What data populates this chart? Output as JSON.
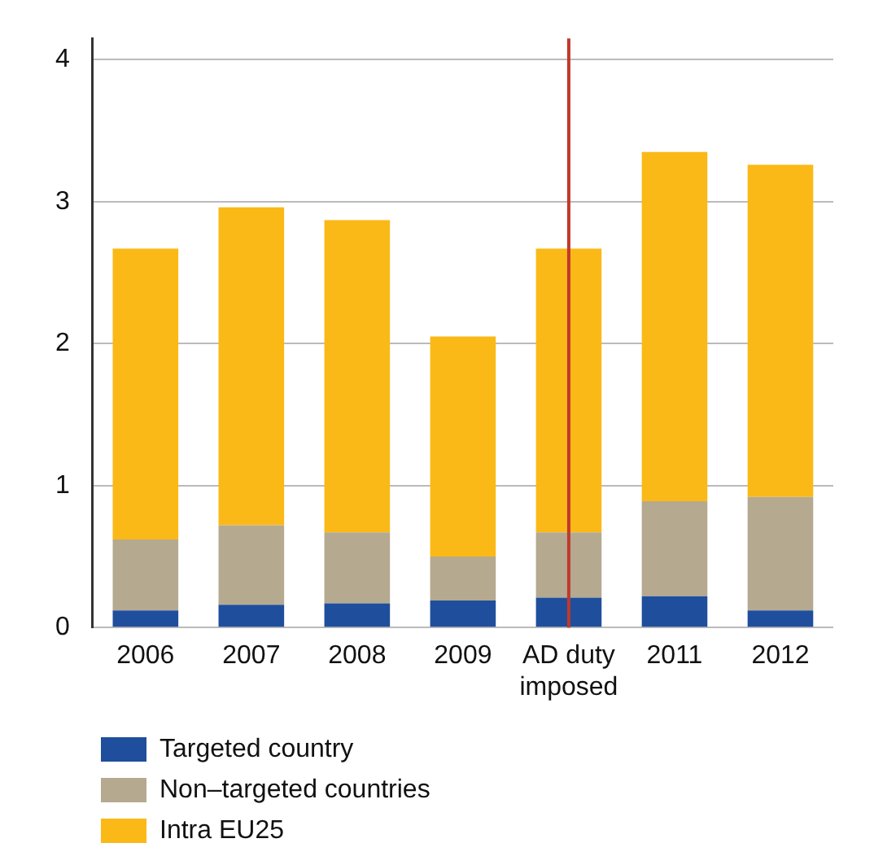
{
  "chart_data": {
    "type": "bar",
    "stacked": true,
    "categories": [
      "2006",
      "2007",
      "2008",
      "2009",
      "AD duty imposed",
      "2011",
      "2012"
    ],
    "series": [
      {
        "name": "Targeted country",
        "color": "#1f4e9c",
        "values": [
          0.12,
          0.16,
          0.17,
          0.19,
          0.21,
          0.22,
          0.12
        ]
      },
      {
        "name": "Non–targeted countries",
        "color": "#b5a990",
        "values": [
          0.5,
          0.56,
          0.5,
          0.31,
          0.46,
          0.67,
          0.8
        ]
      },
      {
        "name": "Intra EU25",
        "color": "#fbb917",
        "values": [
          2.05,
          2.24,
          2.2,
          1.55,
          2.0,
          2.46,
          2.34
        ]
      }
    ],
    "ylim": [
      0,
      4.15
    ],
    "yticks": [
      0,
      1,
      2,
      3,
      4
    ],
    "grid": "y",
    "legend": "bottom left",
    "ref_lines": [
      {
        "axis": "x",
        "value": "AD duty imposed",
        "color": "#c0392b"
      }
    ]
  }
}
